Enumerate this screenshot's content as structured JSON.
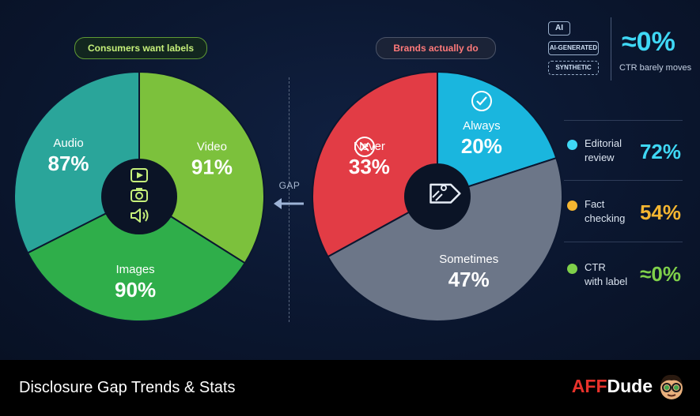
{
  "left_pill": "Consumers want labels",
  "right_pill": "Brands actually do",
  "gap_label": "GAP",
  "badges": {
    "ai": "AI",
    "generated": "AI-GENERATED",
    "synthetic": "SYNTHETIC"
  },
  "ctr_big": "≈0%",
  "ctr_caption": "CTR barely moves",
  "side_stats": [
    {
      "label_line1": "Editorial",
      "label_line2": "review",
      "value": "72%",
      "color": "#3fd8f5"
    },
    {
      "label_line1": "Fact",
      "label_line2": "checking",
      "value": "54%",
      "color": "#f5b631"
    },
    {
      "label_line1": "CTR",
      "label_line2": "with label",
      "value": "≈0%",
      "color": "#7fd04a"
    }
  ],
  "footer": {
    "title": "Disclosure Gap Trends & Stats",
    "logo_aff": "AFF",
    "logo_dude": "Dude"
  },
  "colors": {
    "video": "#7cc13c",
    "images": "#2fae4a",
    "audio": "#2aa59a",
    "always": "#1ab6de",
    "sometimes": "#6c7688",
    "never": "#e23c45"
  },
  "chart_data": [
    {
      "type": "pie",
      "title": "Consumers want labels",
      "categories": [
        "Video",
        "Images",
        "Audio"
      ],
      "values": [
        91,
        90,
        87
      ],
      "labels": [
        "91%",
        "90%",
        "87%"
      ],
      "icons": [
        "play-icon",
        "camera-icon",
        "speaker-icon"
      ]
    },
    {
      "type": "pie",
      "title": "Brands actually do",
      "categories": [
        "Always",
        "Sometimes",
        "Never"
      ],
      "values": [
        20,
        47,
        33
      ],
      "labels": [
        "20%",
        "47%",
        "33%"
      ],
      "icons": [
        "check-icon",
        "tag-icon",
        "x-icon"
      ]
    }
  ]
}
